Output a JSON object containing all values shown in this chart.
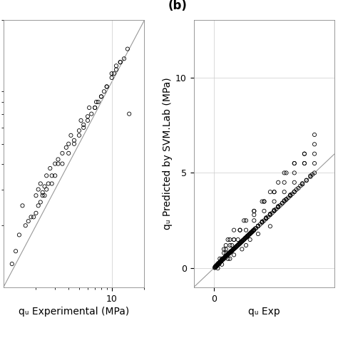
{
  "panel_a_x": [
    1.5,
    1.8,
    2.0,
    2.1,
    2.2,
    2.3,
    2.4,
    2.5,
    2.6,
    2.7,
    2.8,
    3.0,
    3.2,
    3.5,
    4.0,
    4.5,
    5.0,
    5.5,
    6.0,
    6.5,
    7.0,
    7.5,
    8.0,
    9.0,
    10.0,
    11.0,
    12.0,
    13.0,
    14.0,
    1.3,
    1.6,
    1.9,
    2.1,
    2.3,
    2.5,
    3.0,
    3.5,
    4.0,
    4.5,
    5.0,
    5.5,
    6.0,
    7.0,
    8.0,
    9.0,
    10.0,
    11.0,
    12.0,
    1.2,
    1.4,
    1.7,
    2.0,
    2.2,
    2.4,
    2.8,
    3.2,
    3.8,
    4.2,
    5.2,
    6.2,
    7.2,
    8.5,
    10.5,
    14.5
  ],
  "panel_a_y": [
    2.5,
    2.2,
    2.8,
    3.0,
    3.2,
    2.9,
    3.1,
    3.5,
    3.2,
    3.8,
    3.5,
    4.0,
    4.2,
    4.5,
    5.0,
    5.2,
    5.8,
    6.2,
    6.8,
    7.0,
    7.5,
    8.0,
    8.5,
    9.5,
    11.0,
    12.0,
    12.5,
    13.0,
    14.5,
    1.5,
    2.0,
    2.2,
    2.5,
    2.8,
    3.0,
    3.5,
    4.0,
    4.5,
    5.0,
    5.5,
    6.0,
    6.5,
    7.5,
    8.5,
    9.5,
    10.5,
    11.5,
    12.5,
    1.3,
    1.8,
    2.1,
    2.3,
    2.6,
    2.8,
    3.2,
    4.0,
    4.8,
    5.5,
    6.5,
    7.5,
    8.0,
    9.0,
    11.0,
    7.0
  ],
  "panel_b_x": [
    0.05,
    0.08,
    0.1,
    0.12,
    0.15,
    0.18,
    0.2,
    0.22,
    0.25,
    0.28,
    0.3,
    0.32,
    0.35,
    0.38,
    0.4,
    0.42,
    0.45,
    0.48,
    0.5,
    0.52,
    0.55,
    0.58,
    0.6,
    0.62,
    0.65,
    0.68,
    0.7,
    0.72,
    0.75,
    0.78,
    0.8,
    0.82,
    0.85,
    0.88,
    0.9,
    0.92,
    0.95,
    0.98,
    1.0,
    1.05,
    1.1,
    1.15,
    1.2,
    1.25,
    1.3,
    1.35,
    1.4,
    1.45,
    1.5,
    1.55,
    1.6,
    1.65,
    1.7,
    1.75,
    1.8,
    1.85,
    1.9,
    1.95,
    2.0,
    2.1,
    2.2,
    2.3,
    2.4,
    2.5,
    2.6,
    2.7,
    2.8,
    2.9,
    3.0,
    3.1,
    3.2,
    3.3,
    3.4,
    3.5,
    3.6,
    3.7,
    3.8,
    3.9,
    4.0,
    4.2,
    4.4,
    4.6,
    4.8,
    5.0,
    0.05,
    0.1,
    0.15,
    0.2,
    0.25,
    0.3,
    0.35,
    0.4,
    0.45,
    0.5,
    0.55,
    0.6,
    0.65,
    0.7,
    0.75,
    0.8,
    0.85,
    0.9,
    0.95,
    1.0,
    1.1,
    1.2,
    1.3,
    1.4,
    1.5,
    1.6,
    1.7,
    1.8,
    1.9,
    2.0,
    2.2,
    2.4,
    2.6,
    2.8,
    3.0,
    3.2,
    3.4,
    3.6,
    3.8,
    4.0,
    4.3,
    4.6,
    4.9,
    0.08,
    0.15,
    0.22,
    0.3,
    0.38,
    0.45,
    0.52,
    0.6,
    0.68,
    0.75,
    0.82,
    0.9,
    0.98,
    1.05,
    1.15,
    1.25,
    1.35,
    1.45,
    1.55,
    1.65,
    1.75,
    1.85,
    1.95,
    2.05,
    2.2,
    2.4,
    2.6,
    2.8,
    3.0,
    3.2,
    3.5,
    3.8,
    4.1,
    4.4,
    4.8
  ],
  "panel_b_y": [
    0.05,
    0.08,
    0.12,
    0.1,
    0.15,
    0.2,
    0.22,
    0.25,
    0.28,
    0.3,
    0.32,
    0.35,
    0.38,
    0.4,
    0.42,
    0.45,
    0.48,
    0.5,
    0.52,
    0.55,
    0.58,
    0.6,
    0.62,
    0.65,
    0.68,
    0.7,
    0.72,
    0.75,
    0.78,
    0.8,
    0.82,
    0.85,
    0.88,
    0.9,
    0.92,
    0.95,
    0.98,
    1.0,
    1.02,
    1.05,
    1.1,
    1.15,
    1.2,
    1.25,
    1.3,
    1.35,
    1.4,
    1.45,
    1.5,
    1.55,
    1.6,
    1.65,
    1.7,
    1.75,
    1.8,
    1.85,
    1.9,
    1.95,
    2.0,
    2.1,
    2.2,
    2.3,
    2.4,
    2.5,
    2.6,
    2.7,
    2.8,
    2.9,
    3.0,
    3.1,
    3.2,
    3.3,
    3.4,
    3.5,
    3.6,
    3.7,
    3.8,
    3.9,
    4.0,
    4.2,
    4.4,
    4.6,
    4.8,
    5.0,
    0.02,
    0.06,
    0.12,
    0.18,
    0.22,
    0.28,
    0.35,
    0.4,
    0.45,
    0.5,
    0.55,
    0.62,
    0.68,
    0.72,
    0.78,
    0.82,
    0.88,
    0.92,
    0.98,
    1.02,
    1.12,
    1.22,
    1.32,
    1.42,
    1.52,
    1.62,
    1.72,
    1.82,
    1.92,
    2.02,
    2.22,
    2.42,
    2.62,
    2.82,
    3.02,
    3.22,
    3.42,
    3.62,
    3.82,
    4.02,
    4.32,
    4.62,
    4.92,
    0.1,
    0.18,
    0.25,
    0.32,
    0.42,
    0.48,
    0.55,
    0.65,
    0.72,
    0.78,
    0.85,
    0.92,
    1.0,
    1.08,
    1.18,
    1.28,
    1.38,
    1.48,
    1.58,
    1.68,
    1.78,
    1.88,
    1.98,
    2.08,
    2.22,
    2.45,
    2.65,
    2.85,
    3.05,
    3.25,
    3.55,
    3.85,
    4.12,
    4.45,
    4.85
  ],
  "panel_b_x_scatter": [
    0.5,
    0.6,
    0.7,
    0.8,
    0.9,
    1.0,
    1.2,
    1.4,
    1.6,
    1.8,
    2.0,
    2.2,
    2.5,
    2.8,
    3.0,
    3.5,
    4.0,
    4.5,
    5.0,
    0.3,
    0.5,
    0.7,
    1.0,
    1.3,
    1.6,
    2.0,
    2.5,
    3.0,
    3.5,
    4.0,
    4.5,
    5.0,
    0.4,
    0.6,
    0.8,
    1.0,
    1.3,
    1.6,
    2.0,
    2.4,
    2.8,
    3.2,
    3.6,
    4.0,
    4.5,
    5.0,
    0.2,
    0.4,
    0.6,
    0.8,
    1.0,
    1.5,
    2.0,
    2.5,
    3.0,
    3.5,
    4.0,
    4.5,
    5.0
  ],
  "panel_b_y_scatter": [
    0.8,
    1.2,
    1.5,
    0.5,
    1.2,
    0.7,
    1.5,
    1.0,
    2.0,
    1.5,
    2.5,
    1.8,
    3.0,
    2.2,
    3.5,
    4.0,
    4.5,
    5.5,
    5.5,
    0.5,
    1.0,
    0.5,
    1.5,
    2.0,
    1.2,
    2.8,
    3.5,
    4.0,
    4.5,
    5.0,
    5.5,
    6.0,
    0.2,
    0.8,
    1.2,
    1.5,
    2.0,
    2.5,
    3.0,
    3.5,
    4.0,
    4.5,
    5.0,
    5.5,
    6.0,
    6.5,
    0.0,
    0.5,
    1.0,
    1.5,
    2.0,
    2.5,
    3.0,
    3.5,
    4.0,
    5.0,
    5.5,
    6.0,
    7.0
  ],
  "diag_color": "#999999",
  "diag_linewidth": 0.8,
  "grid_color": "#cccccc",
  "grid_linewidth": 0.5,
  "marker_size": 14,
  "marker_color": "black",
  "marker_facecolor": "none",
  "marker_linewidth": 0.6,
  "background_color": "white",
  "panel_b_label": "(b)",
  "label_fontsize": 12,
  "tick_fontsize": 9,
  "axis_label_fontsize": 10,
  "ylabel_b": "qᵤ Predicted by SVM.Lab (MPa)",
  "xlabel_a": "qᵤ Experimental (MPa)",
  "xlabel_b": "qᵤ Exp"
}
